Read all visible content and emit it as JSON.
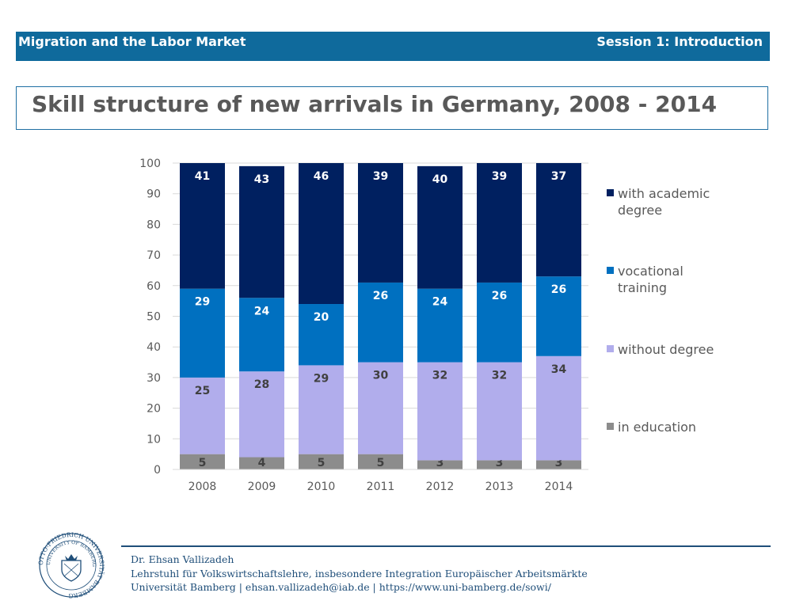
{
  "header": {
    "course": "Migration and the Labor Market",
    "session": "Session 1: Introduction"
  },
  "slide": {
    "title": "Skill structure of new arrivals in Germany, 2008 - 2014"
  },
  "colors": {
    "header_bg": "#0f6a9c",
    "with_academic_degree": "#002060",
    "vocational_training": "#0070c0",
    "without_degree": "#b1adec",
    "in_education": "#8c8c8c"
  },
  "chart_data": {
    "type": "bar",
    "stacked": true,
    "categories": [
      "2008",
      "2009",
      "2010",
      "2011",
      "2012",
      "2013",
      "2014"
    ],
    "series": [
      {
        "name": "in education",
        "values": [
          5,
          4,
          5,
          5,
          3,
          3,
          3
        ],
        "color": "#8c8c8c",
        "label_color": "#404040"
      },
      {
        "name": "without degree",
        "values": [
          25,
          28,
          29,
          30,
          32,
          32,
          34
        ],
        "color": "#b1adec",
        "label_color": "#404040"
      },
      {
        "name": "vocational training",
        "values": [
          29,
          24,
          20,
          26,
          24,
          26,
          26
        ],
        "color": "#0070c0",
        "label_color": "#ffffff"
      },
      {
        "name": "with academic degree",
        "values": [
          41,
          43,
          46,
          39,
          40,
          39,
          37
        ],
        "color": "#002060",
        "label_color": "#ffffff"
      }
    ],
    "legend": [
      "with academic degree",
      "vocational training",
      "without degree",
      "in education"
    ],
    "ylim": [
      0,
      100
    ],
    "yticks": [
      0,
      10,
      20,
      30,
      40,
      50,
      60,
      70,
      80,
      90,
      100
    ],
    "grid": true,
    "legend_position": "right"
  },
  "footer": {
    "author": "Dr. Ehsan Vallizadeh",
    "chair": "Lehrstuhl für Volkswirtschaftslehre, insbesondere Integration Europäischer Arbeitsmärkte",
    "contact": "Universität Bamberg | ehsan.vallizadeh@iab.de | https://www.uni-bamberg.de/sowi/"
  },
  "logo": {
    "outer_text": "OTTO-FRIEDRICH UNIVERSITÄT BAMBERG",
    "inner_text": "UNIVERSITY OF BAMBERG"
  }
}
